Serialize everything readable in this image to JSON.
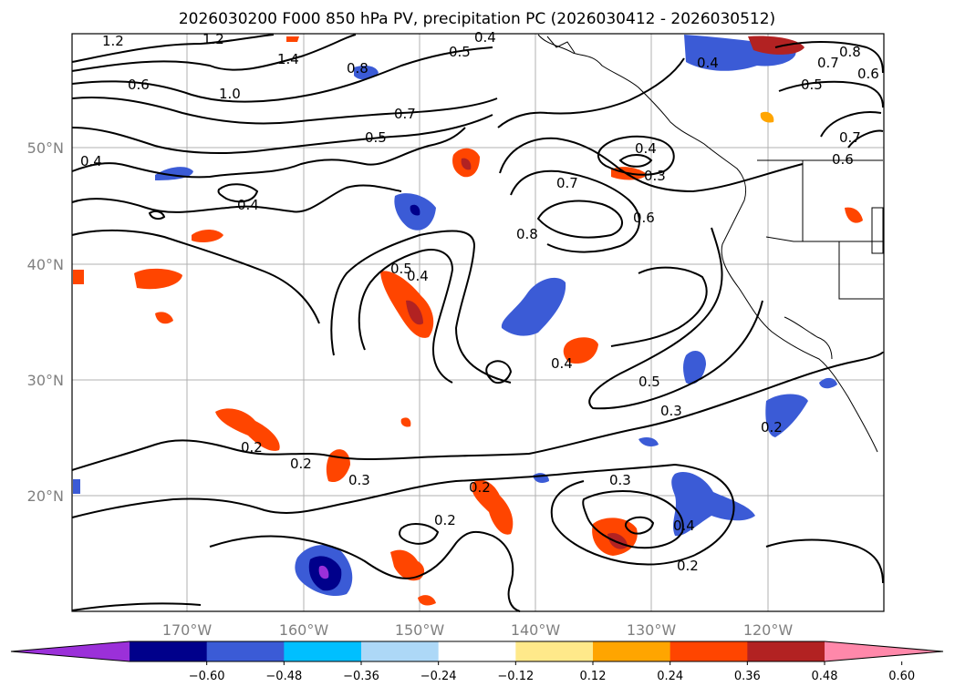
{
  "title": "2026030200 F000 850 hPa PV, precipitation PC (2026030412 - 2026030512)",
  "map": {
    "lon_ticks": [
      "170°W",
      "160°W",
      "150°W",
      "140°W",
      "130°W",
      "120°W"
    ],
    "lat_ticks": [
      "50°N",
      "40°N",
      "30°N",
      "20°N"
    ],
    "grid": true
  },
  "contour_labels": [
    {
      "text": "1.2"
    },
    {
      "text": "1.2"
    },
    {
      "text": "1.4"
    },
    {
      "text": "0.4"
    },
    {
      "text": "0.5"
    },
    {
      "text": "0.8"
    },
    {
      "text": "0.6"
    },
    {
      "text": "1.0"
    },
    {
      "text": "0.7"
    },
    {
      "text": "0.5"
    },
    {
      "text": "0.4"
    },
    {
      "text": "0.4"
    },
    {
      "text": "0.4"
    },
    {
      "text": "0.7"
    },
    {
      "text": "0.6"
    },
    {
      "text": "0.3"
    },
    {
      "text": "0.8"
    },
    {
      "text": "0.5"
    },
    {
      "text": "0.4"
    },
    {
      "text": "0.4"
    },
    {
      "text": "0.5"
    },
    {
      "text": "0.3"
    },
    {
      "text": "0.2"
    },
    {
      "text": "0.2"
    },
    {
      "text": "0.2"
    },
    {
      "text": "0.3"
    },
    {
      "text": "0.2"
    },
    {
      "text": "0.2"
    },
    {
      "text": "0.3"
    },
    {
      "text": "0.4"
    },
    {
      "text": "0.2"
    },
    {
      "text": "0.4"
    },
    {
      "text": "0.5"
    },
    {
      "text": "0.7"
    },
    {
      "text": "0.8"
    },
    {
      "text": "0.6"
    },
    {
      "text": "0.7"
    },
    {
      "text": "0.6"
    }
  ],
  "colorbar": {
    "ticks": [
      "−0.60",
      "−0.48",
      "−0.36",
      "−0.24",
      "−0.12",
      "0.12",
      "0.24",
      "0.36",
      "0.48",
      "0.60"
    ],
    "colors": [
      "#9b30d9",
      "#00008b",
      "#3b5bd6",
      "#00bfff",
      "#add8f7",
      "#ffffff",
      "#ffe98a",
      "#ffa500",
      "#ff4500",
      "#b22222",
      "#ff88aa"
    ]
  }
}
